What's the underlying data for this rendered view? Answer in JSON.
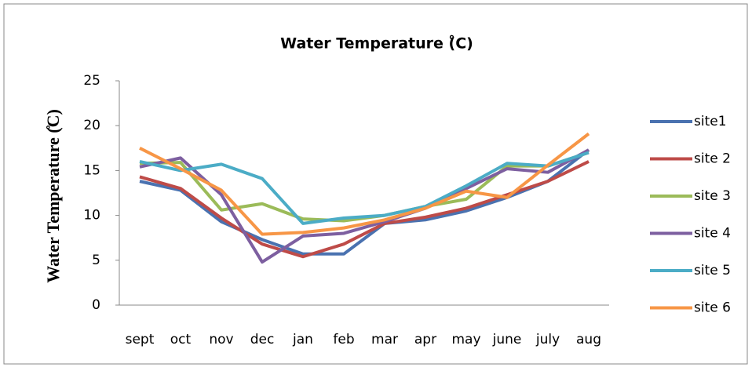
{
  "chart_data": {
    "type": "line",
    "title": "Water Temperature (̊C)",
    "y_label": "Water Temperature (̊C)",
    "categories": [
      "sept",
      "oct",
      "nov",
      "dec",
      "jan",
      "feb",
      "mar",
      "apr",
      "may",
      "june",
      "july",
      "aug"
    ],
    "series": [
      {
        "name": "site1",
        "color": "#4a72b0",
        "values": [
          13.8,
          12.8,
          9.3,
          7.3,
          5.7,
          5.7,
          9.1,
          9.5,
          10.5,
          12,
          13.8,
          17.3
        ]
      },
      {
        "name": "site 2",
        "color": "#be4b48",
        "values": [
          14.3,
          13,
          9.7,
          6.8,
          5.4,
          6.8,
          9.1,
          9.8,
          10.8,
          12.3,
          13.8,
          16
        ]
      },
      {
        "name": "site 3",
        "color": "#9bbb59",
        "values": [
          15.8,
          15.9,
          10.6,
          11.3,
          9.6,
          9.4,
          10,
          11,
          11.8,
          15.5,
          15.5,
          17
        ]
      },
      {
        "name": "site 4",
        "color": "#7d5fa0",
        "values": [
          15.4,
          16.4,
          12.3,
          4.8,
          7.7,
          8,
          9.3,
          10.8,
          13,
          15.2,
          14.8,
          17.3
        ]
      },
      {
        "name": "site 5",
        "color": "#4bacc6",
        "values": [
          16,
          15,
          15.7,
          14.1,
          9.1,
          9.7,
          10,
          11,
          13.3,
          15.8,
          15.5,
          17
        ]
      },
      {
        "name": "site 6",
        "color": "#f79646",
        "values": [
          17.5,
          15.2,
          12.8,
          7.9,
          8.1,
          8.6,
          9.5,
          10.8,
          12.7,
          12,
          15.6,
          19.1
        ]
      }
    ],
    "ylim": [
      0,
      25
    ],
    "yticks": [
      0,
      5,
      10,
      15,
      20,
      25
    ],
    "grid": false,
    "legend": "right"
  }
}
